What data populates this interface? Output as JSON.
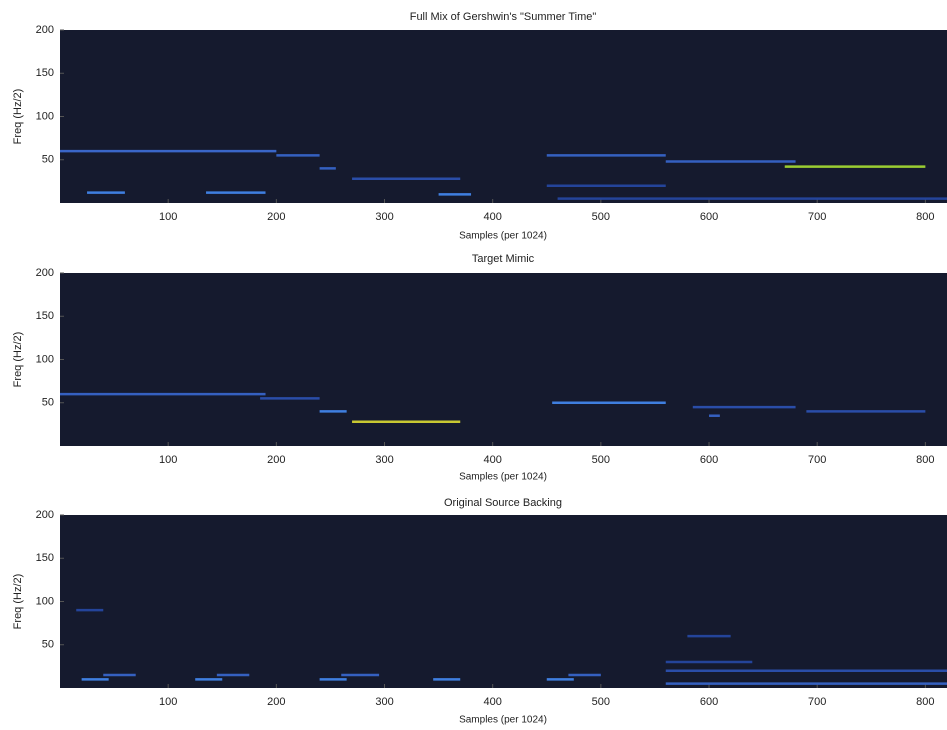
{
  "chart_data": [
    {
      "type": "spectrogram",
      "title": "Full Mix of Gershwin's \"Summer Time\"",
      "x_label": "Samples (per 1024)",
      "y_label": "Freq (Hz/2)",
      "xlim": [
        0,
        820
      ],
      "ylim": [
        0,
        200
      ],
      "xticks": [
        100,
        200,
        300,
        400,
        500,
        600,
        700,
        800
      ],
      "yticks": [
        50,
        100,
        150,
        200
      ],
      "background": "#151a2e",
      "segments": [
        {
          "x": [
            0,
            200
          ],
          "y": 60,
          "color": "#3a66c8"
        },
        {
          "x": [
            25,
            60
          ],
          "y": 12,
          "color": "#3f7fe0"
        },
        {
          "x": [
            135,
            190
          ],
          "y": 12,
          "color": "#3f7fe0"
        },
        {
          "x": [
            200,
            240
          ],
          "y": 55,
          "color": "#3560c0"
        },
        {
          "x": [
            240,
            255
          ],
          "y": 40,
          "color": "#3560c0"
        },
        {
          "x": [
            270,
            370
          ],
          "y": 28,
          "color": "#2a4da8"
        },
        {
          "x": [
            350,
            380
          ],
          "y": 10,
          "color": "#3f7fe0"
        },
        {
          "x": [
            450,
            560
          ],
          "y": 55,
          "color": "#3560c0"
        },
        {
          "x": [
            450,
            560
          ],
          "y": 20,
          "color": "#24449a"
        },
        {
          "x": [
            560,
            680
          ],
          "y": 48,
          "color": "#3560c0"
        },
        {
          "x": [
            670,
            800
          ],
          "y": 42,
          "color": "#9acd32"
        },
        {
          "x": [
            460,
            820
          ],
          "y": 5,
          "color": "#24449a"
        }
      ]
    },
    {
      "type": "spectrogram",
      "title": "Target Mimic",
      "x_label": "Samples (per 1024)",
      "y_label": "Freq (Hz/2)",
      "xlim": [
        0,
        820
      ],
      "ylim": [
        0,
        200
      ],
      "xticks": [
        100,
        200,
        300,
        400,
        500,
        600,
        700,
        800
      ],
      "yticks": [
        50,
        100,
        150,
        200
      ],
      "background": "#151a2e",
      "segments": [
        {
          "x": [
            0,
            190
          ],
          "y": 60,
          "color": "#3560c0"
        },
        {
          "x": [
            185,
            240
          ],
          "y": 55,
          "color": "#2a4da8"
        },
        {
          "x": [
            240,
            265
          ],
          "y": 40,
          "color": "#3f7fe0"
        },
        {
          "x": [
            270,
            370
          ],
          "y": 28,
          "color": "#c8c832"
        },
        {
          "x": [
            455,
            560
          ],
          "y": 50,
          "color": "#3f7fe0"
        },
        {
          "x": [
            585,
            680
          ],
          "y": 45,
          "color": "#2a4da8"
        },
        {
          "x": [
            600,
            610
          ],
          "y": 35,
          "color": "#3560c0"
        },
        {
          "x": [
            690,
            800
          ],
          "y": 40,
          "color": "#2a4da8"
        }
      ]
    },
    {
      "type": "spectrogram",
      "title": "Original Source Backing",
      "x_label": "Samples (per 1024)",
      "y_label": "Freq (Hz/2)",
      "xlim": [
        0,
        820
      ],
      "ylim": [
        0,
        200
      ],
      "xticks": [
        100,
        200,
        300,
        400,
        500,
        600,
        700,
        800
      ],
      "yticks": [
        50,
        100,
        150,
        200
      ],
      "background": "#151a2e",
      "segments": [
        {
          "x": [
            20,
            45
          ],
          "y": 10,
          "color": "#3f7fe0"
        },
        {
          "x": [
            40,
            70
          ],
          "y": 15,
          "color": "#3560c0"
        },
        {
          "x": [
            125,
            150
          ],
          "y": 10,
          "color": "#3f7fe0"
        },
        {
          "x": [
            145,
            175
          ],
          "y": 15,
          "color": "#3560c0"
        },
        {
          "x": [
            240,
            265
          ],
          "y": 10,
          "color": "#3f7fe0"
        },
        {
          "x": [
            260,
            295
          ],
          "y": 15,
          "color": "#3560c0"
        },
        {
          "x": [
            345,
            370
          ],
          "y": 10,
          "color": "#3f7fe0"
        },
        {
          "x": [
            450,
            475
          ],
          "y": 10,
          "color": "#3f7fe0"
        },
        {
          "x": [
            470,
            500
          ],
          "y": 15,
          "color": "#3560c0"
        },
        {
          "x": [
            15,
            40
          ],
          "y": 90,
          "color": "#24449a"
        },
        {
          "x": [
            560,
            820
          ],
          "y": 5,
          "color": "#3560c0"
        },
        {
          "x": [
            560,
            820
          ],
          "y": 20,
          "color": "#2a4da8"
        },
        {
          "x": [
            560,
            640
          ],
          "y": 30,
          "color": "#24449a"
        },
        {
          "x": [
            580,
            620
          ],
          "y": 60,
          "color": "#24449a"
        }
      ]
    }
  ]
}
